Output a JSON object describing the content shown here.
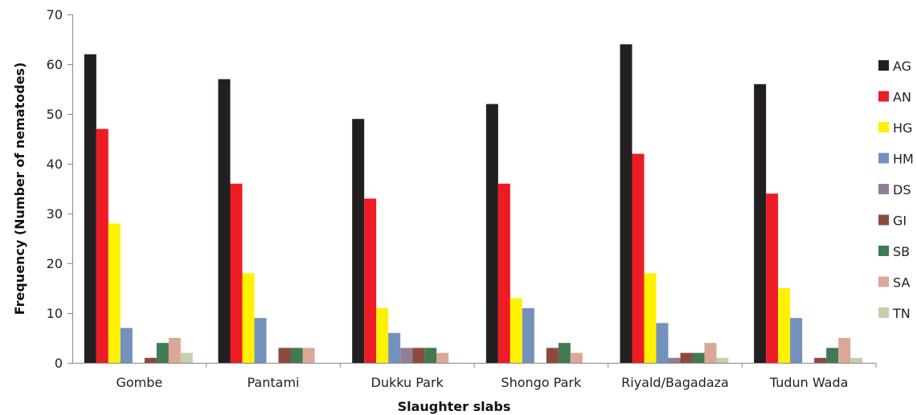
{
  "chart_data": {
    "type": "bar",
    "xlabel": "Slaughter slabs",
    "ylabel": "Frequency (Number of nematodes)",
    "ylim": [
      0,
      70
    ],
    "yticks": [
      0,
      10,
      20,
      30,
      40,
      50,
      60,
      70
    ],
    "grid": false,
    "legend_position": "right",
    "categories": [
      "Gombe",
      "Pantami",
      "Dukku Park",
      "Shongo Park",
      "Riyald/Bagadaza",
      "Tudun Wada"
    ],
    "series": [
      {
        "name": "AG",
        "color": "#231f20",
        "values": [
          62,
          57,
          49,
          52,
          64,
          56
        ]
      },
      {
        "name": "AN",
        "color": "#ed1c24",
        "values": [
          47,
          36,
          33,
          36,
          42,
          34
        ]
      },
      {
        "name": "HG",
        "color": "#fff200",
        "values": [
          28,
          18,
          11,
          13,
          18,
          15
        ]
      },
      {
        "name": "HM",
        "color": "#7391bd",
        "values": [
          7,
          9,
          6,
          11,
          8,
          9
        ]
      },
      {
        "name": "DS",
        "color": "#8f7f94",
        "values": [
          0,
          0,
          3,
          0,
          1,
          0
        ]
      },
      {
        "name": "GI",
        "color": "#8c4a3e",
        "values": [
          1,
          3,
          3,
          3,
          2,
          1
        ]
      },
      {
        "name": "SB",
        "color": "#3f7a52",
        "values": [
          4,
          3,
          3,
          4,
          2,
          3
        ]
      },
      {
        "name": "SA",
        "color": "#d9a898",
        "values": [
          5,
          3,
          2,
          2,
          4,
          5
        ]
      },
      {
        "name": "TN",
        "color": "#c4cfae",
        "values": [
          2,
          0,
          0,
          0,
          1,
          1
        ]
      }
    ]
  }
}
